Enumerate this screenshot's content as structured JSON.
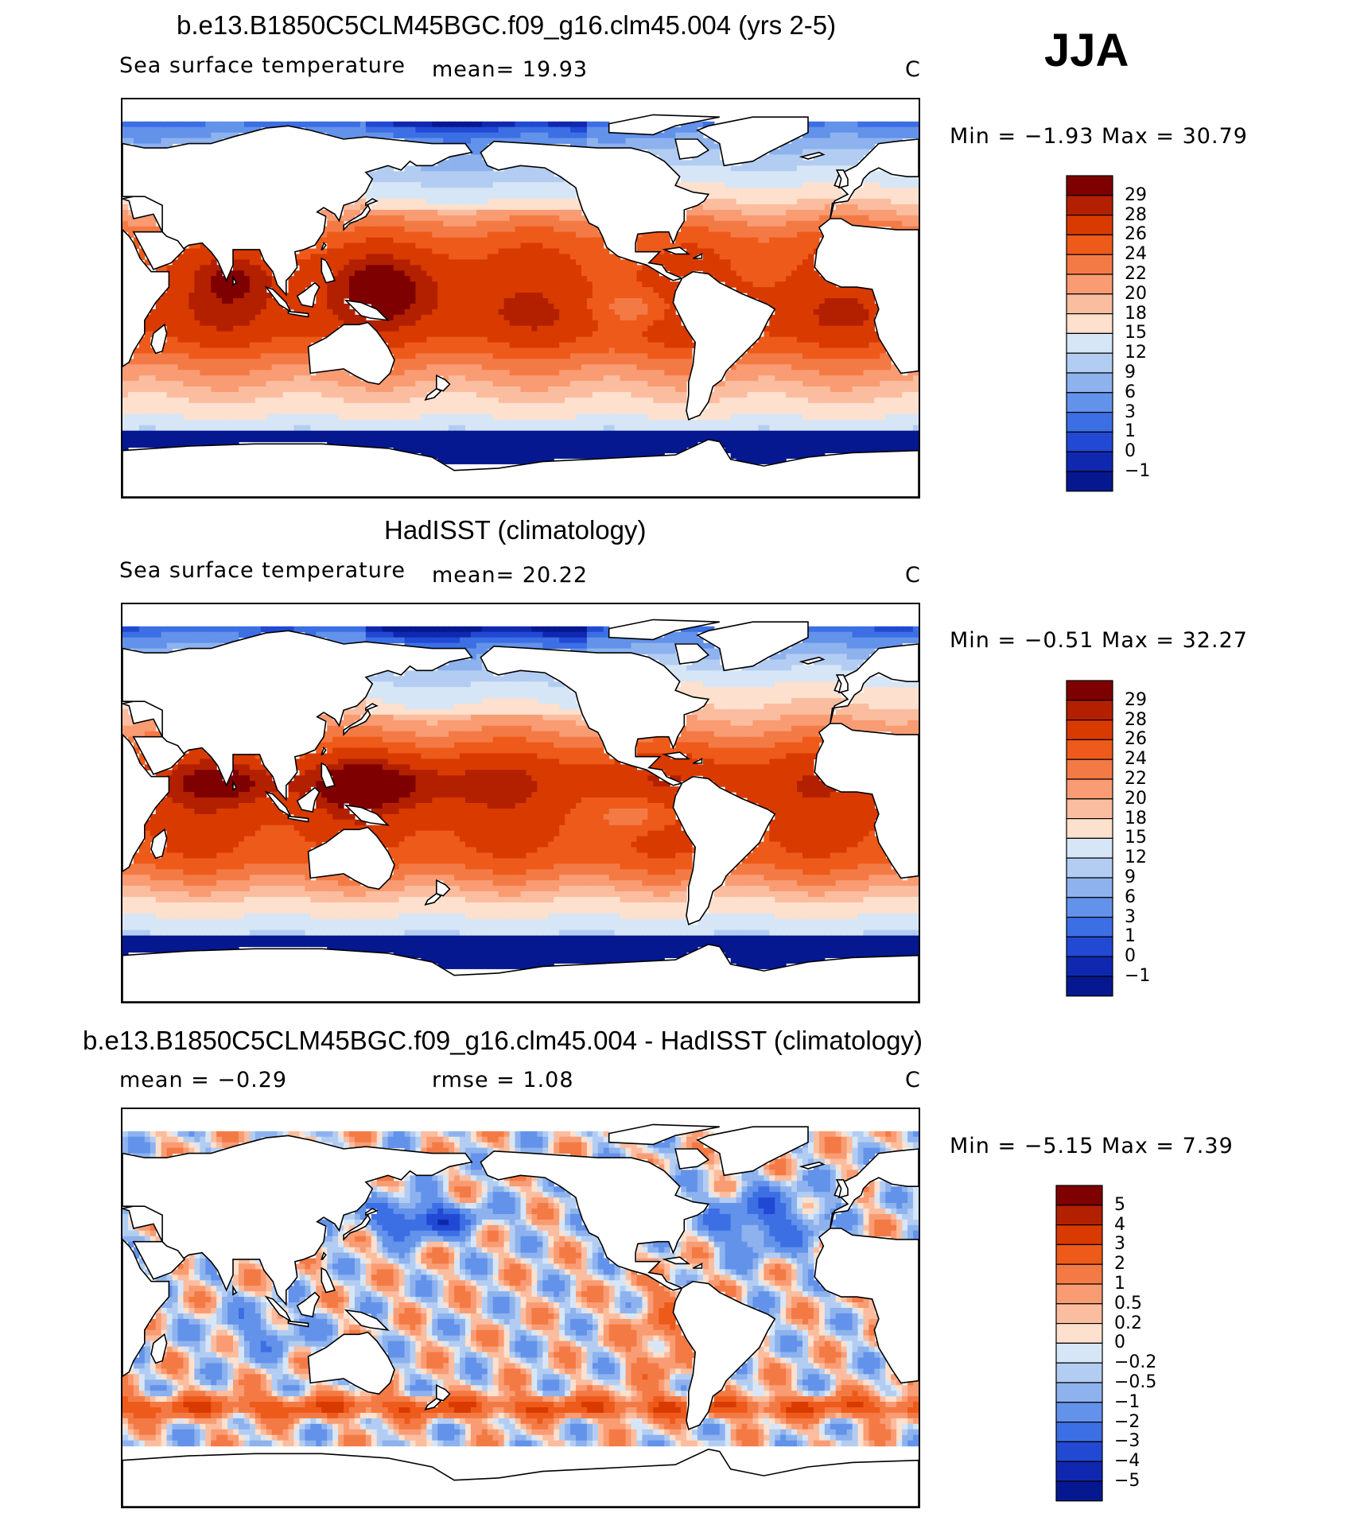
{
  "figure": {
    "season": "JJA"
  },
  "panels": [
    {
      "title": "b.e13.B1850C5CLM45BGC.f09_g16.clm45.004 (yrs 2-5)",
      "left_label": "Sea surface temperature",
      "center_label": "mean=   19.93",
      "units": "C",
      "minmax": "Min =   −1.93 Max =   30.79"
    },
    {
      "title": "HadISST (climatology)",
      "left_label": "Sea surface temperature",
      "center_label": "mean=   20.22",
      "units": "C",
      "minmax": "Min =   −0.51  Max =   32.27"
    },
    {
      "title": "b.e13.B1850C5CLM45BGC.f09_g16.clm45.004 - HadISST (climatology)",
      "left_label": "mean =   −0.29",
      "center_label": "rmse =     1.08",
      "units": "C",
      "minmax": "Min =   −5.15 Max =     7.39"
    }
  ],
  "chart_data": [
    {
      "type": "heatmap",
      "title": "b.e13.B1850C5CLM45BGC.f09_g16.clm45.004 (yrs 2-5)",
      "variable": "Sea surface temperature",
      "units": "C",
      "mean": 19.93,
      "min": -1.93,
      "max": 30.79,
      "contour_levels": [
        "29",
        "28",
        "26",
        "24",
        "22",
        "20",
        "18",
        "15",
        "12",
        "9",
        "6",
        "3",
        "1",
        "0",
        "−1"
      ],
      "colors": [
        "#7f0000",
        "#b22000",
        "#d93a00",
        "#ee5a1a",
        "#f47a45",
        "#f99c73",
        "#fbbd9f",
        "#fde0cd",
        "#d6e6f6",
        "#b3cdf2",
        "#8db2ee",
        "#6392ea",
        "#3c6fe4",
        "#2149d4",
        "#1028b0",
        "#061890"
      ]
    },
    {
      "type": "heatmap",
      "title": "HadISST (climatology)",
      "variable": "Sea surface temperature",
      "units": "C",
      "mean": 20.22,
      "min": -0.51,
      "max": 32.27,
      "contour_levels": [
        "29",
        "28",
        "26",
        "24",
        "22",
        "20",
        "18",
        "15",
        "12",
        "9",
        "6",
        "3",
        "1",
        "0",
        "−1"
      ],
      "colors": [
        "#7f0000",
        "#b22000",
        "#d93a00",
        "#ee5a1a",
        "#f47a45",
        "#f99c73",
        "#fbbd9f",
        "#fde0cd",
        "#d6e6f6",
        "#b3cdf2",
        "#8db2ee",
        "#6392ea",
        "#3c6fe4",
        "#2149d4",
        "#1028b0",
        "#061890"
      ]
    },
    {
      "type": "heatmap",
      "title": "b.e13.B1850C5CLM45BGC.f09_g16.clm45.004 - HadISST (climatology)",
      "units": "C",
      "mean": -0.29,
      "rmse": 1.08,
      "min": -5.15,
      "max": 7.39,
      "contour_levels": [
        "5",
        "4",
        "3",
        "2",
        "1",
        "0.5",
        "0.2",
        "0",
        "−0.2",
        "−0.5",
        "−1",
        "−2",
        "−3",
        "−4",
        "−5"
      ],
      "colors": [
        "#7f0000",
        "#b22000",
        "#d93a00",
        "#ee5a1a",
        "#f47a45",
        "#f99c73",
        "#fbbd9f",
        "#fde0cd",
        "#d6e6f6",
        "#b3cdf2",
        "#8db2ee",
        "#6392ea",
        "#3c6fe4",
        "#2149d4",
        "#1028b0",
        "#061890"
      ]
    }
  ]
}
